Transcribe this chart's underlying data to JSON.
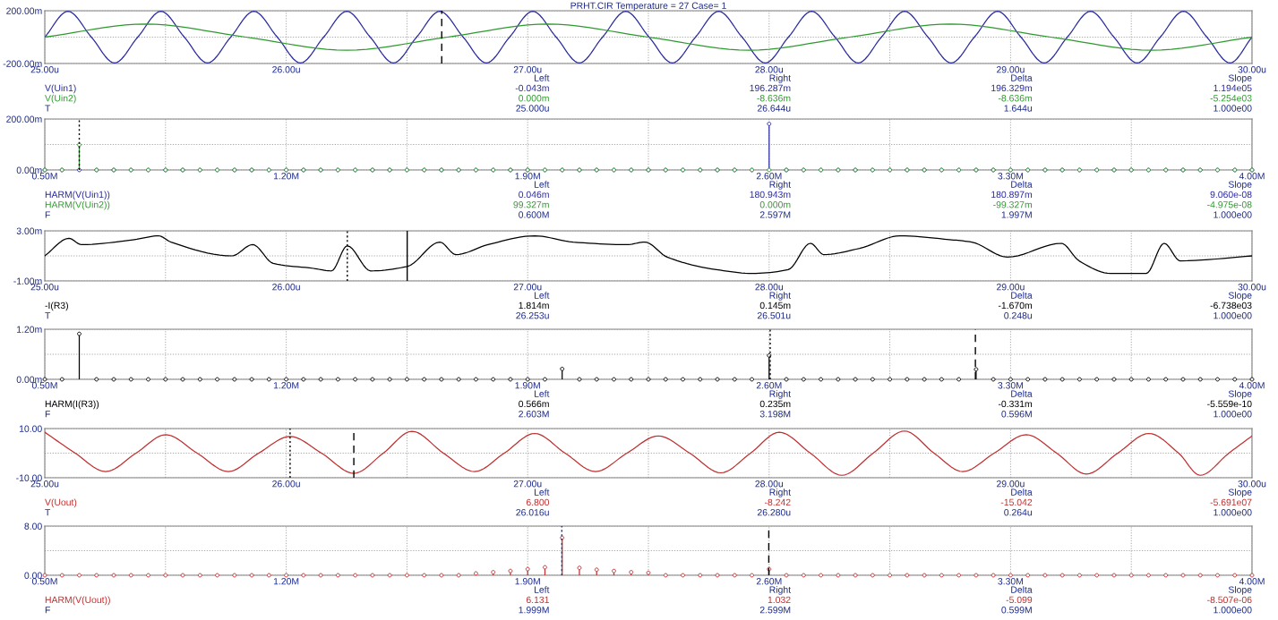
{
  "chart_data": [
    {
      "type": "line",
      "title": "PRHT.CIR Temperature = 27 Case= 1",
      "xlabel": "T",
      "marker": "none",
      "grid": true,
      "xlim": [
        25,
        30
      ],
      "xticks": [
        {
          "value": 25,
          "label": "25.00u"
        },
        {
          "value": 25.5,
          "label": null
        },
        {
          "value": 26,
          "label": "26.00u"
        },
        {
          "value": 26.5,
          "label": null
        },
        {
          "value": 27,
          "label": "27.00u"
        },
        {
          "value": 27.5,
          "label": null
        },
        {
          "value": 28,
          "label": "28.00u"
        },
        {
          "value": 28.5,
          "label": null
        },
        {
          "value": 29,
          "label": "29.00u"
        },
        {
          "value": 29.5,
          "label": null
        },
        {
          "value": 30,
          "label": "30.00u"
        }
      ],
      "ylim": [
        -200,
        200
      ],
      "yticks": [
        {
          "value": -200,
          "label": "-200.00m"
        },
        {
          "value": 0,
          "label": null
        },
        {
          "value": 200,
          "label": "200.00m"
        }
      ],
      "series": [
        {
          "name": "V(Uin1)",
          "color": "#2b2ba0",
          "x": [
            25.0,
            25.096,
            25.193,
            25.289,
            25.385,
            25.481,
            25.578,
            25.674,
            25.77,
            25.866,
            25.963,
            26.059,
            26.155,
            26.251,
            26.348,
            26.444,
            26.54,
            26.636,
            26.733,
            26.829,
            26.925,
            27.021,
            27.118,
            27.214,
            27.31,
            27.406,
            27.503,
            27.599,
            27.695,
            27.791,
            27.888,
            27.984,
            28.08,
            28.176,
            28.273,
            28.369,
            28.465,
            28.561,
            28.658,
            28.754,
            28.85,
            28.946,
            29.043,
            29.139,
            29.235,
            29.331,
            29.428,
            29.524,
            29.62,
            29.716,
            29.813,
            29.909,
            30.0
          ],
          "values": [
            0,
            196,
            0,
            -196,
            0,
            196,
            0,
            -196,
            0,
            196,
            0,
            -196,
            0,
            196,
            0,
            -196,
            0,
            196,
            0,
            -196,
            0,
            196,
            0,
            -196,
            0,
            196,
            0,
            -196,
            0,
            196,
            0,
            -196,
            0,
            196,
            0,
            -196,
            0,
            196,
            0,
            -196,
            0,
            196,
            0,
            -196,
            0,
            196,
            0,
            -196,
            0,
            196,
            0,
            -196,
            0
          ]
        },
        {
          "name": "V(Uin2)",
          "color": "#2e9a2e",
          "x": [
            25.0,
            25.417,
            25.833,
            26.25,
            26.667,
            27.083,
            27.5,
            27.917,
            28.333,
            28.75,
            29.167,
            29.583,
            30.0
          ],
          "values": [
            0,
            99,
            0,
            -99,
            0,
            99,
            0,
            -99,
            0,
            99,
            0,
            -99,
            0
          ]
        }
      ],
      "ref_lines": [
        {
          "axis": "x",
          "value": 26.644,
          "color": "#000000",
          "line_style": "dashed"
        }
      ],
      "annotations": [
        "Left",
        "Right",
        "Delta",
        "Slope",
        "-0.043m",
        "196.287m",
        "196.329m",
        "1.194e05",
        "0.000m",
        "-8.636m",
        "-8.636m",
        "-5.254e03",
        "25.000u",
        "26.644u",
        "1.644u",
        "1.000e00"
      ]
    },
    {
      "type": "lollipop",
      "xlabel": "F",
      "marker": "circle",
      "grid": true,
      "xlim": [
        0.5,
        4.0
      ],
      "xticks": [
        {
          "value": 0.5,
          "label": "0.50M"
        },
        {
          "value": 0.85,
          "label": null
        },
        {
          "value": 1.2,
          "label": "1.20M"
        },
        {
          "value": 1.55,
          "label": null
        },
        {
          "value": 1.9,
          "label": "1.90M"
        },
        {
          "value": 2.25,
          "label": null
        },
        {
          "value": 2.6,
          "label": "2.60M"
        },
        {
          "value": 2.95,
          "label": null
        },
        {
          "value": 3.3,
          "label": "3.30M"
        },
        {
          "value": 3.65,
          "label": null
        },
        {
          "value": 4.0,
          "label": "4.00M"
        }
      ],
      "ylim": [
        0,
        200
      ],
      "yticks": [
        {
          "value": 0,
          "label": "0.00m"
        },
        {
          "value": 100,
          "label": null
        },
        {
          "value": 200,
          "label": "200.00m"
        }
      ],
      "x": [
        0.5,
        0.55,
        0.6,
        0.65,
        0.7,
        0.75,
        0.8,
        0.85,
        0.9,
        0.95,
        1.0,
        1.05,
        1.1,
        1.15,
        1.2,
        1.25,
        1.3,
        1.35,
        1.4,
        1.45,
        1.5,
        1.55,
        1.6,
        1.65,
        1.7,
        1.75,
        1.8,
        1.85,
        1.9,
        1.95,
        2.0,
        2.05,
        2.1,
        2.15,
        2.2,
        2.25,
        2.3,
        2.35,
        2.4,
        2.45,
        2.5,
        2.55,
        2.6,
        2.65,
        2.7,
        2.75,
        2.8,
        2.85,
        2.9,
        2.95,
        3.0,
        3.05,
        3.1,
        3.15,
        3.2,
        3.25,
        3.3,
        3.35,
        3.4,
        3.45,
        3.5,
        3.55,
        3.6,
        3.65,
        3.7,
        3.75,
        3.8,
        3.85,
        3.9,
        3.95,
        4.0
      ],
      "series": [
        {
          "name": "HARM(V(Uin1))",
          "color": "#2b2ba0",
          "values": [
            0,
            0,
            0,
            0,
            0,
            0,
            0,
            0,
            0,
            0,
            0,
            0,
            0,
            0,
            0,
            0,
            0,
            0,
            0,
            0,
            0,
            0,
            0,
            0,
            0,
            0,
            0,
            0,
            0,
            0,
            0,
            0,
            0,
            0,
            0,
            0,
            0,
            0,
            0,
            0,
            0,
            0,
            181,
            0,
            0,
            0,
            0,
            0,
            0,
            0,
            0,
            0,
            0,
            0,
            0,
            0,
            0,
            0,
            0,
            0,
            0,
            0,
            0,
            0,
            0,
            0,
            0,
            0,
            0,
            0,
            0
          ]
        },
        {
          "name": "HARM(V(Uin2))",
          "color": "#2e9a2e",
          "values": [
            0,
            0,
            99,
            0,
            0,
            0,
            0,
            0,
            0,
            0,
            0,
            0,
            0,
            0,
            0,
            0,
            0,
            0,
            0,
            0,
            0,
            0,
            0,
            0,
            0,
            0,
            0,
            0,
            0,
            0,
            0,
            0,
            0,
            0,
            0,
            0,
            0,
            0,
            0,
            0,
            0,
            0,
            0,
            0,
            0,
            0,
            0,
            0,
            0,
            0,
            0,
            0,
            0,
            0,
            0,
            0,
            0,
            0,
            0,
            0,
            0,
            0,
            0,
            0,
            0,
            0,
            0,
            0,
            0,
            0,
            0
          ]
        }
      ],
      "ref_lines": [
        {
          "axis": "x",
          "value": 0.6,
          "color": "#000000",
          "line_style": "dotted"
        }
      ],
      "annotations": [
        "Left",
        "Right",
        "Delta",
        "Slope",
        "0.046m",
        "180.943m",
        "180.897m",
        "9.060e-08",
        "99.327m",
        "0.000m",
        "-99.327m",
        "-4.975e-08",
        "0.600M",
        "2.597M",
        "1.997M",
        "1.000e00"
      ]
    },
    {
      "type": "line",
      "xlabel": "T",
      "marker": "none",
      "grid": true,
      "xlim": [
        25,
        30
      ],
      "xticks": [
        {
          "value": 25,
          "label": "25.00u"
        },
        {
          "value": 25.5,
          "label": null
        },
        {
          "value": 26,
          "label": "26.00u"
        },
        {
          "value": 26.5,
          "label": null
        },
        {
          "value": 27,
          "label": "27.00u"
        },
        {
          "value": 27.5,
          "label": null
        },
        {
          "value": 28,
          "label": "28.00u"
        },
        {
          "value": 28.5,
          "label": null
        },
        {
          "value": 29,
          "label": "29.00u"
        },
        {
          "value": 29.5,
          "label": null
        },
        {
          "value": 30,
          "label": "30.00u"
        }
      ],
      "ylim": [
        -1,
        3
      ],
      "yticks": [
        {
          "value": -1,
          "label": "-1.00m"
        },
        {
          "value": 1,
          "label": null
        },
        {
          "value": 3,
          "label": "3.00m"
        }
      ],
      "series": [
        {
          "name": "-I(R3)",
          "color": "#000000",
          "x": [
            25.0,
            25.1,
            25.152,
            25.371,
            25.471,
            25.523,
            25.775,
            25.861,
            25.946,
            26.113,
            26.187,
            26.253,
            26.35,
            26.501,
            26.636,
            26.703,
            26.836,
            27.029,
            27.188,
            27.411,
            27.485,
            27.578,
            27.782,
            27.93,
            28.079,
            28.171,
            28.227,
            28.375,
            28.542,
            28.746,
            28.839,
            28.987,
            29.21,
            29.284,
            29.414,
            29.562,
            29.636,
            29.703,
            30.0
          ],
          "values": [
            1.0,
            2.4,
            1.9,
            2.3,
            2.6,
            2.1,
            1.0,
            1.9,
            0.4,
            0.0,
            -0.2,
            1.8,
            -0.2,
            0.15,
            2.1,
            1.1,
            1.9,
            2.6,
            2.1,
            1.9,
            2.1,
            0.9,
            -0.1,
            -0.4,
            -0.1,
            2.0,
            1.1,
            1.6,
            2.6,
            2.3,
            2.1,
            0.9,
            2.0,
            0.6,
            -0.4,
            -0.4,
            2.0,
            0.6,
            1.0
          ]
        }
      ],
      "ref_lines": [
        {
          "axis": "x",
          "value": 26.253,
          "color": "#000000",
          "line_style": "dotted"
        },
        {
          "axis": "x",
          "value": 26.501,
          "color": "#000000",
          "line_style": "solid"
        }
      ],
      "annotations": [
        "Left",
        "Right",
        "Delta",
        "Slope",
        "1.814m",
        "0.145m",
        "-1.670m",
        "-6.738e03",
        "26.253u",
        "26.501u",
        "0.248u",
        "1.000e00"
      ]
    },
    {
      "type": "lollipop",
      "xlabel": "F",
      "marker": "circle",
      "grid": true,
      "xlim": [
        0.5,
        4.0
      ],
      "xticks": [
        {
          "value": 0.5,
          "label": "0.50M"
        },
        {
          "value": 0.85,
          "label": null
        },
        {
          "value": 1.2,
          "label": "1.20M"
        },
        {
          "value": 1.55,
          "label": null
        },
        {
          "value": 1.9,
          "label": "1.90M"
        },
        {
          "value": 2.25,
          "label": null
        },
        {
          "value": 2.6,
          "label": "2.60M"
        },
        {
          "value": 2.95,
          "label": null
        },
        {
          "value": 3.3,
          "label": "3.30M"
        },
        {
          "value": 3.65,
          "label": null
        },
        {
          "value": 4.0,
          "label": "4.00M"
        }
      ],
      "ylim": [
        0,
        1.2
      ],
      "yticks": [
        {
          "value": 0,
          "label": "0.00m"
        },
        {
          "value": 0.6,
          "label": null
        },
        {
          "value": 1.2,
          "label": "1.20m"
        }
      ],
      "x": [
        0.5,
        0.55,
        0.6,
        0.65,
        0.7,
        0.75,
        0.8,
        0.85,
        0.9,
        0.95,
        1.0,
        1.05,
        1.1,
        1.15,
        1.2,
        1.25,
        1.3,
        1.35,
        1.4,
        1.45,
        1.5,
        1.55,
        1.6,
        1.65,
        1.7,
        1.75,
        1.8,
        1.85,
        1.9,
        1.95,
        2.0,
        2.05,
        2.1,
        2.15,
        2.2,
        2.25,
        2.3,
        2.35,
        2.4,
        2.45,
        2.5,
        2.55,
        2.6,
        2.65,
        2.7,
        2.75,
        2.8,
        2.85,
        2.9,
        2.95,
        3.0,
        3.05,
        3.1,
        3.15,
        3.2,
        3.25,
        3.3,
        3.35,
        3.4,
        3.45,
        3.5,
        3.55,
        3.6,
        3.65,
        3.7,
        3.75,
        3.8,
        3.85,
        3.9,
        3.95,
        4.0
      ],
      "series": [
        {
          "name": "HARM(I(R3))",
          "color": "#000000",
          "values": [
            0,
            0,
            1.09,
            0,
            0,
            0,
            0,
            0,
            0,
            0,
            0,
            0,
            0,
            0,
            0,
            0,
            0,
            0,
            0,
            0,
            0,
            0,
            0,
            0,
            0,
            0,
            0,
            0,
            0,
            0,
            0.25,
            0,
            0,
            0,
            0,
            0,
            0,
            0,
            0,
            0,
            0,
            0,
            0.57,
            0,
            0,
            0,
            0,
            0,
            0,
            0,
            0,
            0,
            0,
            0,
            0.24,
            0,
            0,
            0,
            0,
            0,
            0,
            0,
            0,
            0,
            0,
            0,
            0,
            0,
            0,
            0,
            0
          ]
        }
      ],
      "ref_lines": [
        {
          "axis": "x",
          "value": 2.603,
          "color": "#000000",
          "line_style": "dotted"
        },
        {
          "axis": "x",
          "value": 3.198,
          "color": "#000000",
          "line_style": "dashed"
        }
      ],
      "annotations": [
        "Left",
        "Right",
        "Delta",
        "Slope",
        "0.566m",
        "0.235m",
        "-0.331m",
        "-5.559e-10",
        "2.603M",
        "3.198M",
        "0.596M",
        "1.000e00"
      ]
    },
    {
      "type": "line",
      "xlabel": "T",
      "marker": "none",
      "grid": true,
      "xlim": [
        25,
        30
      ],
      "xticks": [
        {
          "value": 25,
          "label": "25.00u"
        },
        {
          "value": 25.5,
          "label": null
        },
        {
          "value": 26,
          "label": "26.00u"
        },
        {
          "value": 26.5,
          "label": null
        },
        {
          "value": 27,
          "label": "27.00u"
        },
        {
          "value": 27.5,
          "label": null
        },
        {
          "value": 28,
          "label": "28.00u"
        },
        {
          "value": 28.5,
          "label": null
        },
        {
          "value": 29,
          "label": "29.00u"
        },
        {
          "value": 29.5,
          "label": null
        },
        {
          "value": 30,
          "label": "30.00u"
        }
      ],
      "ylim": [
        -10,
        10
      ],
      "yticks": [
        {
          "value": -10,
          "label": "-10.00"
        },
        {
          "value": 0,
          "label": null
        },
        {
          "value": 10,
          "label": "10.00"
        }
      ],
      "series": [
        {
          "name": "V(Uout)",
          "color": "#c03030",
          "x": [
            25.0,
            25.126,
            25.252,
            25.378,
            25.501,
            25.631,
            25.76,
            25.886,
            26.016,
            26.146,
            26.28,
            26.402,
            26.521,
            26.651,
            26.78,
            26.903,
            27.029,
            27.155,
            27.281,
            27.411,
            27.541,
            27.671,
            27.8,
            27.923,
            28.042,
            28.171,
            28.301,
            28.431,
            28.561,
            28.683,
            28.802,
            28.932,
            29.065,
            29.191,
            29.314,
            29.444,
            29.573,
            29.696,
            29.785,
            29.904,
            30.0
          ],
          "values": [
            8.5,
            0,
            -7.5,
            0,
            7.5,
            0,
            -7.5,
            0,
            6.8,
            0,
            -8.2,
            0,
            8.9,
            0,
            -7.5,
            0,
            8.0,
            0,
            -7.5,
            0,
            7.0,
            0,
            -8.0,
            0,
            8.5,
            0,
            -9.0,
            0,
            9.0,
            0,
            -7.5,
            0,
            7.5,
            0,
            -8.5,
            0,
            8.0,
            0,
            -9.0,
            0,
            7.0
          ]
        }
      ],
      "ref_lines": [
        {
          "axis": "x",
          "value": 26.016,
          "color": "#000000",
          "line_style": "dotted"
        },
        {
          "axis": "x",
          "value": 26.28,
          "color": "#000000",
          "line_style": "dashed"
        }
      ],
      "annotations": [
        "Left",
        "Right",
        "Delta",
        "Slope",
        "6.800",
        "-8.242",
        "-15.042",
        "-5.691e07",
        "26.016u",
        "26.280u",
        "0.264u",
        "1.000e00"
      ]
    },
    {
      "type": "lollipop",
      "xlabel": "F",
      "marker": "circle",
      "grid": true,
      "xlim": [
        0.5,
        4.0
      ],
      "xticks": [
        {
          "value": 0.5,
          "label": "0.50M"
        },
        {
          "value": 0.85,
          "label": null
        },
        {
          "value": 1.2,
          "label": "1.20M"
        },
        {
          "value": 1.55,
          "label": null
        },
        {
          "value": 1.9,
          "label": "1.90M"
        },
        {
          "value": 2.25,
          "label": null
        },
        {
          "value": 2.6,
          "label": "2.60M"
        },
        {
          "value": 2.95,
          "label": null
        },
        {
          "value": 3.3,
          "label": "3.30M"
        },
        {
          "value": 3.65,
          "label": null
        },
        {
          "value": 4.0,
          "label": "4.00M"
        }
      ],
      "ylim": [
        0,
        8
      ],
      "yticks": [
        {
          "value": 0,
          "label": "0.00"
        },
        {
          "value": 4,
          "label": null
        },
        {
          "value": 8,
          "label": "8.00"
        }
      ],
      "x": [
        0.5,
        0.55,
        0.6,
        0.65,
        0.7,
        0.75,
        0.8,
        0.85,
        0.9,
        0.95,
        1.0,
        1.05,
        1.1,
        1.15,
        1.2,
        1.25,
        1.3,
        1.35,
        1.4,
        1.45,
        1.5,
        1.55,
        1.6,
        1.65,
        1.7,
        1.75,
        1.8,
        1.85,
        1.9,
        1.95,
        2.0,
        2.05,
        2.1,
        2.15,
        2.2,
        2.25,
        2.3,
        2.35,
        2.4,
        2.45,
        2.5,
        2.55,
        2.6,
        2.65,
        2.7,
        2.75,
        2.8,
        2.85,
        2.9,
        2.95,
        3.0,
        3.05,
        3.1,
        3.15,
        3.2,
        3.25,
        3.3,
        3.35,
        3.4,
        3.45,
        3.5,
        3.55,
        3.6,
        3.65,
        3.7,
        3.75,
        3.8,
        3.85,
        3.9,
        3.95,
        4.0
      ],
      "series": [
        {
          "name": "HARM(V(Uout))",
          "color": "#c03030",
          "values": [
            0,
            0,
            0,
            0,
            0,
            0,
            0,
            0,
            0,
            0,
            0,
            0,
            0,
            0,
            0,
            0,
            0,
            0,
            0,
            0,
            0,
            0,
            0,
            0,
            0,
            0.3,
            0.5,
            0.7,
            1.0,
            1.3,
            6.1,
            1.2,
            0.9,
            0.7,
            0.5,
            0.4,
            0,
            0,
            0,
            0,
            0,
            0,
            1.0,
            0,
            0,
            0,
            0,
            0,
            0,
            0,
            0,
            0,
            0,
            0,
            0,
            0,
            0,
            0,
            0,
            0,
            0,
            0,
            0,
            0,
            0,
            0,
            0,
            0,
            0,
            0,
            0
          ]
        }
      ],
      "ref_lines": [
        {
          "axis": "x",
          "value": 1.999,
          "color": "#1c2a8c",
          "line_style": "dotted"
        },
        {
          "axis": "x",
          "value": 2.599,
          "color": "#000000",
          "line_style": "dashed"
        }
      ],
      "annotations": [
        "Left",
        "Right",
        "Delta",
        "Slope",
        "6.131",
        "1.032",
        "-5.099",
        "-8.507e-06",
        "1.999M",
        "2.599M",
        "0.599M",
        "1.000e00"
      ]
    }
  ]
}
